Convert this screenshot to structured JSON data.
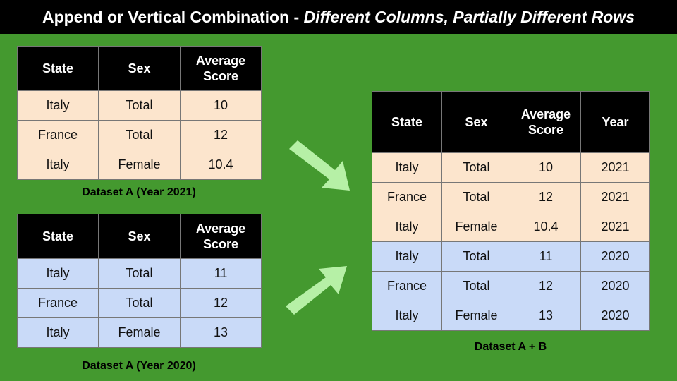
{
  "title": {
    "main": "Append or Vertical Combination",
    "separator": " - ",
    "subtitle": "Different Columns, Partially Different Rows"
  },
  "colors": {
    "background": "#44992f",
    "header": "#000000",
    "row_2021": "#fce5cd",
    "row_2020": "#c9daf8",
    "arrow": "#b6f0a6"
  },
  "tables": {
    "a2021": {
      "caption": "Dataset A (Year 2021)",
      "headers": [
        "State",
        "Sex",
        "Average Score"
      ],
      "rows": [
        [
          "Italy",
          "Total",
          "10"
        ],
        [
          "France",
          "Total",
          "12"
        ],
        [
          "Italy",
          "Female",
          "10.4"
        ]
      ]
    },
    "a2020": {
      "caption": "Dataset A (Year 2020)",
      "headers": [
        "State",
        "Sex",
        "Average Score"
      ],
      "rows": [
        [
          "Italy",
          "Total",
          "11"
        ],
        [
          "France",
          "Total",
          "12"
        ],
        [
          "Italy",
          "Female",
          "13"
        ]
      ]
    },
    "ab": {
      "caption": "Dataset A + B",
      "headers": [
        "State",
        "Sex",
        "Average Score",
        "Year"
      ],
      "rows": [
        [
          "Italy",
          "Total",
          "10",
          "2021"
        ],
        [
          "France",
          "Total",
          "12",
          "2021"
        ],
        [
          "Italy",
          "Female",
          "10.4",
          "2021"
        ],
        [
          "Italy",
          "Total",
          "11",
          "2020"
        ],
        [
          "France",
          "Total",
          "12",
          "2020"
        ],
        [
          "Italy",
          "Female",
          "13",
          "2020"
        ]
      ]
    }
  }
}
